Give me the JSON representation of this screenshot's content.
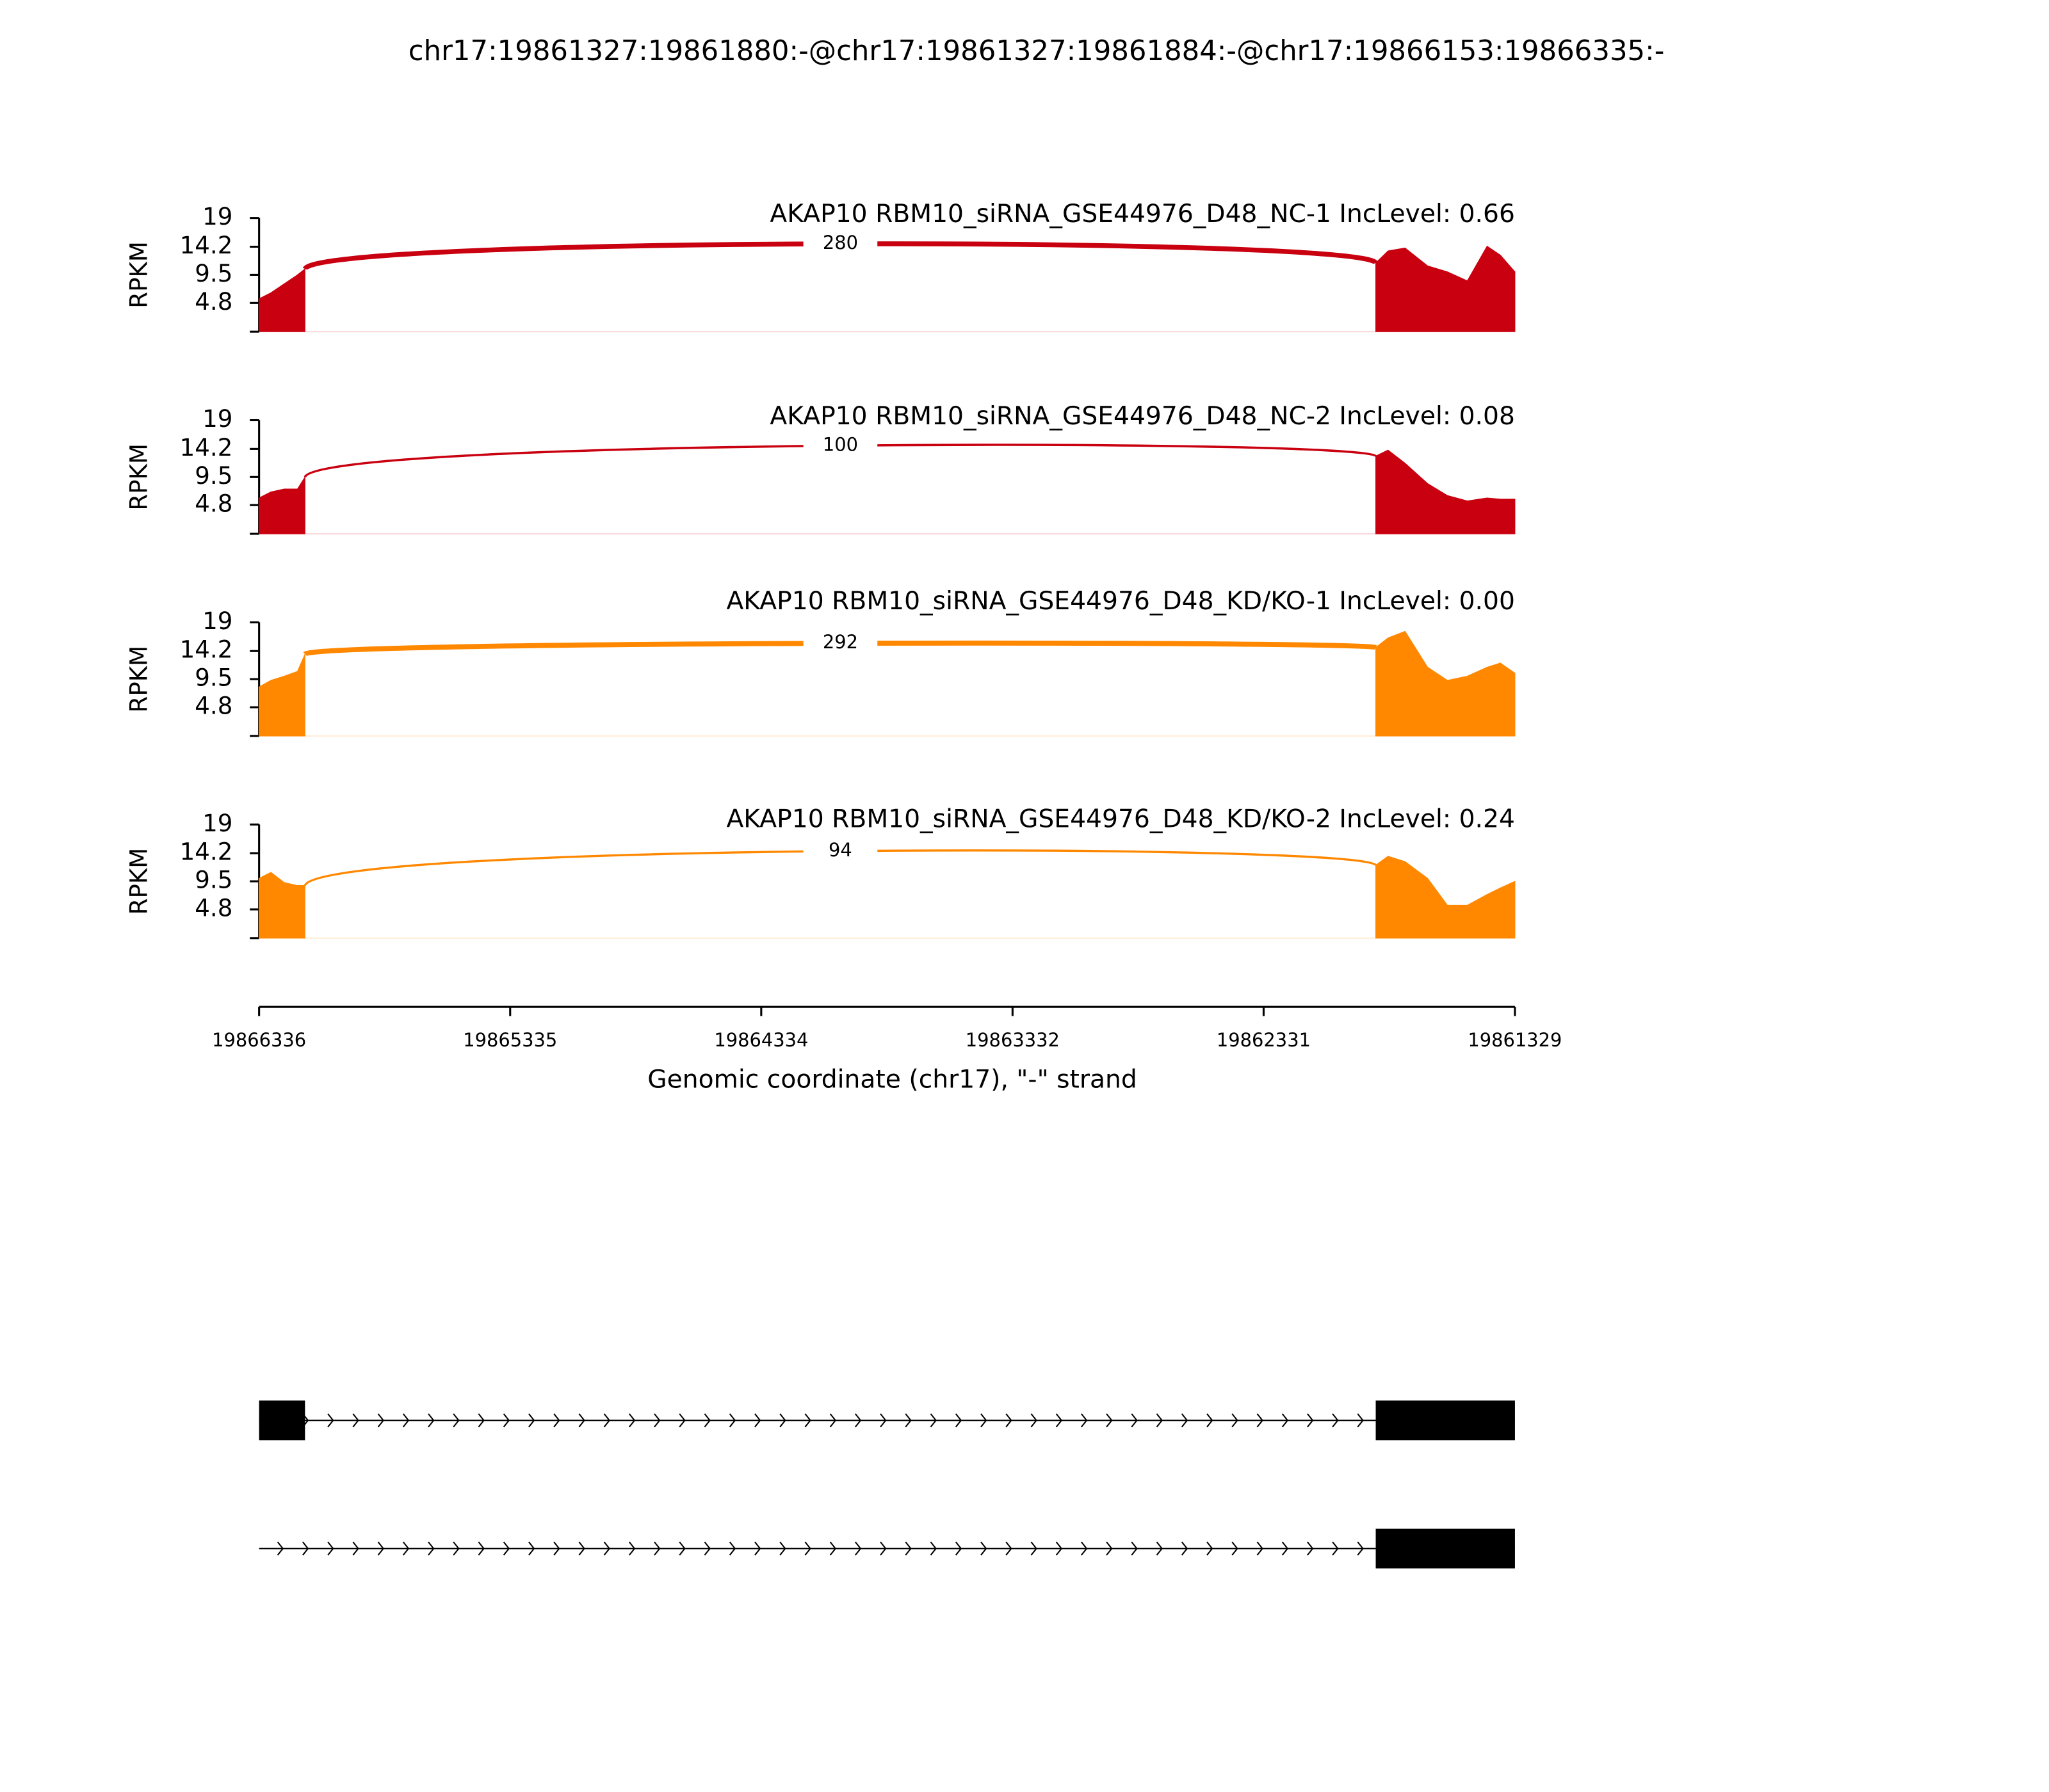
{
  "chart_data": {
    "type": "sashimi",
    "title": "chr17:19861327:19861880:-@chr17:19861327:19861884:-@chr17:19866153:19866335:-",
    "xlabel": "Genomic coordinate (chr17), \"-\" strand",
    "xlim": [
      19866336,
      19861329
    ],
    "xticks": [
      19866336,
      19865335,
      19864334,
      19863332,
      19862331,
      19861329
    ],
    "ylabel": "RPKM",
    "ylim": [
      0,
      19
    ],
    "yticks": [
      4.8,
      9.5,
      14.2,
      19
    ],
    "x": [
      19866336,
      19866289,
      19866236,
      19866183,
      19866153,
      null,
      19861884,
      19861835,
      19861767,
      19861677,
      19861598,
      19861519,
      19861440,
      19861387,
      19861329
    ],
    "tracks": [
      {
        "name": "AKAP10 RBM10_siRNA_GSE44976_D48_NC-1 IncLevel: 0.66",
        "color": "#c9000f",
        "values": [
          5.5,
          6.5,
          8,
          9.5,
          10.5,
          null,
          11.5,
          13.5,
          14,
          11,
          10,
          8.5,
          14.3,
          12.8,
          10
        ],
        "junction": {
          "start": 19866153,
          "end": 19861884,
          "count": 280
        }
      },
      {
        "name": "AKAP10 RBM10_siRNA_GSE44976_D48_NC-2 IncLevel: 0.08",
        "color": "#c9000f",
        "values": [
          6,
          7,
          7.5,
          7.5,
          9.5,
          null,
          13,
          14,
          11.8,
          8.4,
          6.4,
          5.5,
          6,
          5.8,
          5.8
        ],
        "junction": {
          "start": 19866153,
          "end": 19861884,
          "count": 100
        }
      },
      {
        "name": "AKAP10 RBM10_siRNA_GSE44976_D48_KD/KO-1 IncLevel: 0.00",
        "color": "#ff8800",
        "values": [
          8.2,
          9.3,
          10,
          10.8,
          13.7,
          null,
          14.8,
          16.4,
          17.5,
          11.5,
          9.3,
          10,
          11.5,
          12.2,
          10.5
        ],
        "junction": {
          "start": 19866153,
          "end": 19861884,
          "count": 292
        }
      },
      {
        "name": "AKAP10 RBM10_siRNA_GSE44976_D48_KD/KO-2 IncLevel: 0.24",
        "color": "#ff8800",
        "values": [
          10,
          11,
          9.3,
          8.8,
          8.8,
          null,
          12.2,
          13.7,
          12.8,
          10,
          5.5,
          5.5,
          7.3,
          8.4,
          9.5
        ],
        "junction": {
          "start": 19866153,
          "end": 19861884,
          "count": 94
        }
      }
    ],
    "transcripts": [
      {
        "start": 19866336,
        "end": 19861329,
        "exons": [
          [
            19866336,
            19866153
          ],
          [
            19861884,
            19861329
          ]
        ]
      },
      {
        "start": 19866336,
        "end": 19861329,
        "exons": [
          [
            19861884,
            19861329
          ]
        ]
      }
    ]
  }
}
